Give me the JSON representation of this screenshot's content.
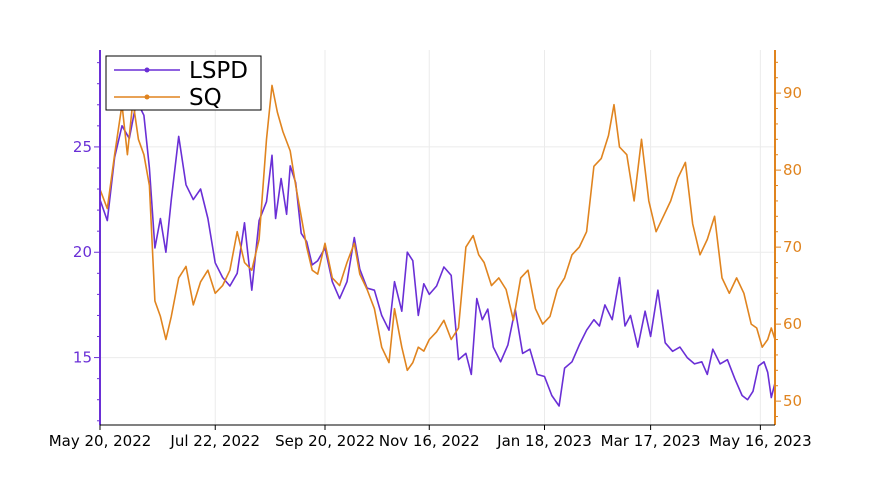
{
  "chart_data": {
    "type": "line",
    "title": "",
    "x_tick_labels": [
      "May 20, 2022",
      "Jul 22, 2022",
      "Sep 20, 2022",
      "Nov 16, 2022",
      "Jan 18, 2023",
      "Mar 17, 2023",
      "May 16, 2023"
    ],
    "x_range": [
      "2022-05-20",
      "2023-05-24"
    ],
    "y_left": {
      "ticks": [
        15,
        20,
        25
      ],
      "range": [
        11.8,
        29.6
      ],
      "color": "#6a2fd6"
    },
    "y_right": {
      "ticks": [
        50,
        60,
        70,
        80,
        90
      ],
      "range": [
        46.9,
        95.6
      ],
      "color": "#e0841f"
    },
    "legend": {
      "position": "top-left",
      "entries": [
        "LSPD",
        "SQ"
      ]
    },
    "series": [
      {
        "name": "LSPD",
        "axis": "left",
        "color": "#6a2fd6",
        "points": [
          [
            "2022-05-20",
            22.5
          ],
          [
            "2022-05-24",
            21.5
          ],
          [
            "2022-05-28",
            24.5
          ],
          [
            "2022-06-01",
            26.0
          ],
          [
            "2022-06-05",
            25.4
          ],
          [
            "2022-06-09",
            27.2
          ],
          [
            "2022-06-13",
            26.5
          ],
          [
            "2022-06-16",
            24.0
          ],
          [
            "2022-06-19",
            20.2
          ],
          [
            "2022-06-22",
            21.6
          ],
          [
            "2022-06-25",
            20.0
          ],
          [
            "2022-06-28",
            22.5
          ],
          [
            "2022-07-02",
            25.5
          ],
          [
            "2022-07-06",
            23.2
          ],
          [
            "2022-07-10",
            22.5
          ],
          [
            "2022-07-14",
            23.0
          ],
          [
            "2022-07-18",
            21.6
          ],
          [
            "2022-07-22",
            19.5
          ],
          [
            "2022-07-26",
            18.8
          ],
          [
            "2022-07-30",
            18.4
          ],
          [
            "2022-08-03",
            19.0
          ],
          [
            "2022-08-07",
            21.4
          ],
          [
            "2022-08-11",
            18.2
          ],
          [
            "2022-08-15",
            21.5
          ],
          [
            "2022-08-19",
            22.4
          ],
          [
            "2022-08-22",
            24.6
          ],
          [
            "2022-08-24",
            21.6
          ],
          [
            "2022-08-27",
            23.5
          ],
          [
            "2022-08-30",
            21.8
          ],
          [
            "2022-09-01",
            24.1
          ],
          [
            "2022-09-04",
            23.3
          ],
          [
            "2022-09-07",
            20.9
          ],
          [
            "2022-09-10",
            20.5
          ],
          [
            "2022-09-13",
            19.4
          ],
          [
            "2022-09-16",
            19.6
          ],
          [
            "2022-09-20",
            20.2
          ],
          [
            "2022-09-24",
            18.6
          ],
          [
            "2022-09-28",
            17.8
          ],
          [
            "2022-10-02",
            18.6
          ],
          [
            "2022-10-06",
            20.7
          ],
          [
            "2022-10-09",
            19.2
          ],
          [
            "2022-10-13",
            18.3
          ],
          [
            "2022-10-17",
            18.2
          ],
          [
            "2022-10-21",
            17.0
          ],
          [
            "2022-10-25",
            16.3
          ],
          [
            "2022-10-28",
            18.6
          ],
          [
            "2022-11-01",
            17.2
          ],
          [
            "2022-11-04",
            20.0
          ],
          [
            "2022-11-07",
            19.6
          ],
          [
            "2022-11-10",
            17.0
          ],
          [
            "2022-11-13",
            18.5
          ],
          [
            "2022-11-16",
            18.0
          ],
          [
            "2022-11-20",
            18.4
          ],
          [
            "2022-11-24",
            19.3
          ],
          [
            "2022-11-28",
            18.9
          ],
          [
            "2022-12-02",
            14.9
          ],
          [
            "2022-12-06",
            15.2
          ],
          [
            "2022-12-09",
            14.2
          ],
          [
            "2022-12-12",
            17.8
          ],
          [
            "2022-12-15",
            16.8
          ],
          [
            "2022-12-18",
            17.3
          ],
          [
            "2022-12-21",
            15.5
          ],
          [
            "2022-12-25",
            14.8
          ],
          [
            "2022-12-29",
            15.6
          ],
          [
            "2023-01-02",
            17.3
          ],
          [
            "2023-01-06",
            15.2
          ],
          [
            "2023-01-10",
            15.4
          ],
          [
            "2023-01-14",
            14.2
          ],
          [
            "2023-01-18",
            14.1
          ],
          [
            "2023-01-22",
            13.2
          ],
          [
            "2023-01-26",
            12.7
          ],
          [
            "2023-01-29",
            14.5
          ],
          [
            "2023-02-02",
            14.8
          ],
          [
            "2023-02-06",
            15.6
          ],
          [
            "2023-02-10",
            16.3
          ],
          [
            "2023-02-14",
            16.8
          ],
          [
            "2023-02-17",
            16.5
          ],
          [
            "2023-02-20",
            17.5
          ],
          [
            "2023-02-24",
            16.8
          ],
          [
            "2023-02-28",
            18.8
          ],
          [
            "2023-03-03",
            16.5
          ],
          [
            "2023-03-06",
            17.0
          ],
          [
            "2023-03-10",
            15.5
          ],
          [
            "2023-03-14",
            17.2
          ],
          [
            "2023-03-17",
            16.0
          ],
          [
            "2023-03-21",
            18.2
          ],
          [
            "2023-03-25",
            15.7
          ],
          [
            "2023-03-29",
            15.3
          ],
          [
            "2023-04-02",
            15.5
          ],
          [
            "2023-04-06",
            15.0
          ],
          [
            "2023-04-10",
            14.7
          ],
          [
            "2023-04-14",
            14.8
          ],
          [
            "2023-04-17",
            14.2
          ],
          [
            "2023-04-20",
            15.4
          ],
          [
            "2023-04-24",
            14.7
          ],
          [
            "2023-04-28",
            14.9
          ],
          [
            "2023-05-02",
            14.0
          ],
          [
            "2023-05-06",
            13.2
          ],
          [
            "2023-05-09",
            13.0
          ],
          [
            "2023-05-12",
            13.4
          ],
          [
            "2023-05-15",
            14.6
          ],
          [
            "2023-05-18",
            14.8
          ],
          [
            "2023-05-20",
            14.3
          ],
          [
            "2023-05-22",
            13.1
          ],
          [
            "2023-05-24",
            13.8
          ]
        ]
      },
      {
        "name": "SQ",
        "axis": "right",
        "color": "#e0841f",
        "points": [
          [
            "2022-05-20",
            77.5
          ],
          [
            "2022-05-24",
            75.0
          ],
          [
            "2022-05-28",
            82.0
          ],
          [
            "2022-06-01",
            88.5
          ],
          [
            "2022-06-04",
            82.0
          ],
          [
            "2022-06-07",
            89.0
          ],
          [
            "2022-06-10",
            84.0
          ],
          [
            "2022-06-13",
            82.0
          ],
          [
            "2022-06-16",
            78.0
          ],
          [
            "2022-06-19",
            63.0
          ],
          [
            "2022-06-22",
            61.0
          ],
          [
            "2022-06-25",
            58.0
          ],
          [
            "2022-06-28",
            61.0
          ],
          [
            "2022-07-02",
            66.0
          ],
          [
            "2022-07-06",
            67.5
          ],
          [
            "2022-07-10",
            62.5
          ],
          [
            "2022-07-14",
            65.5
          ],
          [
            "2022-07-18",
            67.0
          ],
          [
            "2022-07-22",
            64.0
          ],
          [
            "2022-07-26",
            65.0
          ],
          [
            "2022-07-30",
            67.0
          ],
          [
            "2022-08-03",
            72.0
          ],
          [
            "2022-08-07",
            68.0
          ],
          [
            "2022-08-11",
            67.0
          ],
          [
            "2022-08-15",
            71.0
          ],
          [
            "2022-08-19",
            84.0
          ],
          [
            "2022-08-22",
            91.0
          ],
          [
            "2022-08-25",
            87.5
          ],
          [
            "2022-08-28",
            85.0
          ],
          [
            "2022-09-01",
            82.5
          ],
          [
            "2022-09-04",
            78.0
          ],
          [
            "2022-09-07",
            74.0
          ],
          [
            "2022-09-10",
            70.0
          ],
          [
            "2022-09-13",
            67.0
          ],
          [
            "2022-09-16",
            66.5
          ],
          [
            "2022-09-20",
            70.5
          ],
          [
            "2022-09-24",
            66.0
          ],
          [
            "2022-09-28",
            65.0
          ],
          [
            "2022-10-02",
            68.0
          ],
          [
            "2022-10-06",
            70.5
          ],
          [
            "2022-10-09",
            66.5
          ],
          [
            "2022-10-13",
            64.5
          ],
          [
            "2022-10-17",
            62.0
          ],
          [
            "2022-10-21",
            57.0
          ],
          [
            "2022-10-25",
            55.0
          ],
          [
            "2022-10-28",
            62.0
          ],
          [
            "2022-11-01",
            57.0
          ],
          [
            "2022-11-04",
            54.0
          ],
          [
            "2022-11-07",
            55.0
          ],
          [
            "2022-11-10",
            57.0
          ],
          [
            "2022-11-13",
            56.5
          ],
          [
            "2022-11-16",
            58.0
          ],
          [
            "2022-11-20",
            59.0
          ],
          [
            "2022-11-24",
            60.5
          ],
          [
            "2022-11-28",
            58.0
          ],
          [
            "2022-12-02",
            59.5
          ],
          [
            "2022-12-06",
            70.0
          ],
          [
            "2022-12-10",
            71.5
          ],
          [
            "2022-12-13",
            69.0
          ],
          [
            "2022-12-16",
            68.0
          ],
          [
            "2022-12-20",
            65.0
          ],
          [
            "2022-12-24",
            66.0
          ],
          [
            "2022-12-28",
            64.5
          ],
          [
            "2023-01-01",
            60.5
          ],
          [
            "2023-01-05",
            66.0
          ],
          [
            "2023-01-09",
            67.0
          ],
          [
            "2023-01-13",
            62.0
          ],
          [
            "2023-01-17",
            60.0
          ],
          [
            "2023-01-21",
            61.0
          ],
          [
            "2023-01-25",
            64.5
          ],
          [
            "2023-01-29",
            66.0
          ],
          [
            "2023-02-02",
            69.0
          ],
          [
            "2023-02-06",
            70.0
          ],
          [
            "2023-02-10",
            72.0
          ],
          [
            "2023-02-14",
            80.5
          ],
          [
            "2023-02-18",
            81.5
          ],
          [
            "2023-02-22",
            84.5
          ],
          [
            "2023-02-25",
            88.5
          ],
          [
            "2023-02-28",
            83.0
          ],
          [
            "2023-03-04",
            82.0
          ],
          [
            "2023-03-08",
            76.0
          ],
          [
            "2023-03-12",
            84.0
          ],
          [
            "2023-03-16",
            76.0
          ],
          [
            "2023-03-20",
            72.0
          ],
          [
            "2023-03-24",
            74.0
          ],
          [
            "2023-03-28",
            76.0
          ],
          [
            "2023-04-01",
            79.0
          ],
          [
            "2023-04-05",
            81.0
          ],
          [
            "2023-04-09",
            73.0
          ],
          [
            "2023-04-13",
            69.0
          ],
          [
            "2023-04-17",
            71.0
          ],
          [
            "2023-04-21",
            74.0
          ],
          [
            "2023-04-25",
            66.0
          ],
          [
            "2023-04-29",
            64.0
          ],
          [
            "2023-05-03",
            66.0
          ],
          [
            "2023-05-07",
            64.0
          ],
          [
            "2023-05-11",
            60.0
          ],
          [
            "2023-05-14",
            59.5
          ],
          [
            "2023-05-17",
            57.0
          ],
          [
            "2023-05-20",
            58.0
          ],
          [
            "2023-05-22",
            59.5
          ],
          [
            "2023-05-24",
            58.0
          ]
        ]
      }
    ]
  }
}
